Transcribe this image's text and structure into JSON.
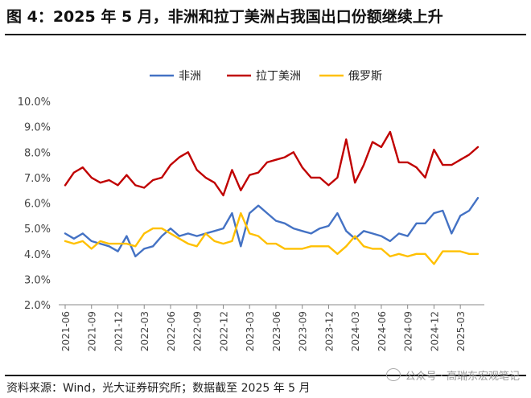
{
  "figure": {
    "title": "图 4：2025 年 5 月，非洲和拉丁美洲占我国出口份额继续上升",
    "source": "资料来源：Wind，光大证券研究所；数据截至 2025 年 5 月",
    "watermark": "公众号 · 高瑞东宏观笔记"
  },
  "chart_data": {
    "type": "line",
    "title": "",
    "xlabel": "",
    "ylabel": "",
    "ylim": [
      0.02,
      0.1
    ],
    "y_ticks": [
      "2.0%",
      "3.0%",
      "4.0%",
      "5.0%",
      "6.0%",
      "7.0%",
      "8.0%",
      "9.0%",
      "10.0%"
    ],
    "x_tick_labels": [
      "2021-06",
      "2021-09",
      "2021-12",
      "2022-03",
      "2022-06",
      "2022-09",
      "2022-12",
      "2023-03",
      "2023-06",
      "2023-09",
      "2023-12",
      "2024-03",
      "2024-06",
      "2024-09",
      "2024-12",
      "2025-03"
    ],
    "x": [
      "2021-06",
      "2021-07",
      "2021-08",
      "2021-09",
      "2021-10",
      "2021-11",
      "2021-12",
      "2022-01",
      "2022-02",
      "2022-03",
      "2022-04",
      "2022-05",
      "2022-06",
      "2022-07",
      "2022-08",
      "2022-09",
      "2022-10",
      "2022-11",
      "2022-12",
      "2023-01",
      "2023-02",
      "2023-03",
      "2023-04",
      "2023-05",
      "2023-06",
      "2023-07",
      "2023-08",
      "2023-09",
      "2023-10",
      "2023-11",
      "2023-12",
      "2024-01",
      "2024-02",
      "2024-03",
      "2024-04",
      "2024-05",
      "2024-06",
      "2024-07",
      "2024-08",
      "2024-09",
      "2024-10",
      "2024-11",
      "2024-12",
      "2025-01",
      "2025-02",
      "2025-03",
      "2025-04",
      "2025-05"
    ],
    "legend_position": "top-center",
    "grid": false,
    "series": [
      {
        "name": "非洲",
        "color": "#4472C4",
        "values": [
          0.048,
          0.046,
          0.048,
          0.045,
          0.044,
          0.043,
          0.041,
          0.047,
          0.039,
          0.042,
          0.043,
          0.047,
          0.05,
          0.047,
          0.048,
          0.047,
          0.048,
          0.049,
          0.05,
          0.056,
          0.043,
          0.056,
          0.059,
          0.056,
          0.053,
          0.052,
          0.05,
          0.049,
          0.048,
          0.05,
          0.051,
          0.056,
          0.049,
          0.046,
          0.049,
          0.048,
          0.047,
          0.045,
          0.048,
          0.047,
          0.052,
          0.052,
          0.056,
          0.057,
          0.048,
          0.055,
          0.057,
          0.062
        ]
      },
      {
        "name": "拉丁美洲",
        "color": "#C00000",
        "values": [
          0.067,
          0.072,
          0.074,
          0.07,
          0.068,
          0.069,
          0.067,
          0.071,
          0.067,
          0.066,
          0.069,
          0.07,
          0.075,
          0.078,
          0.08,
          0.073,
          0.07,
          0.068,
          0.063,
          0.073,
          0.065,
          0.071,
          0.072,
          0.076,
          0.077,
          0.078,
          0.08,
          0.074,
          0.07,
          0.07,
          0.067,
          0.07,
          0.085,
          0.068,
          0.075,
          0.084,
          0.082,
          0.088,
          0.076,
          0.076,
          0.074,
          0.07,
          0.081,
          0.075,
          0.075,
          0.077,
          0.079,
          0.082
        ]
      },
      {
        "name": "俄罗斯",
        "color": "#FFC000",
        "values": [
          0.045,
          0.044,
          0.045,
          0.042,
          0.045,
          0.044,
          0.044,
          0.044,
          0.043,
          0.048,
          0.05,
          0.05,
          0.048,
          0.046,
          0.044,
          0.043,
          0.048,
          0.045,
          0.044,
          0.045,
          0.056,
          0.048,
          0.047,
          0.044,
          0.044,
          0.042,
          0.042,
          0.042,
          0.043,
          0.043,
          0.043,
          0.04,
          0.043,
          0.047,
          0.043,
          0.042,
          0.042,
          0.039,
          0.04,
          0.039,
          0.04,
          0.04,
          0.036,
          0.041,
          0.041,
          0.041,
          0.04,
          0.04
        ]
      }
    ]
  }
}
